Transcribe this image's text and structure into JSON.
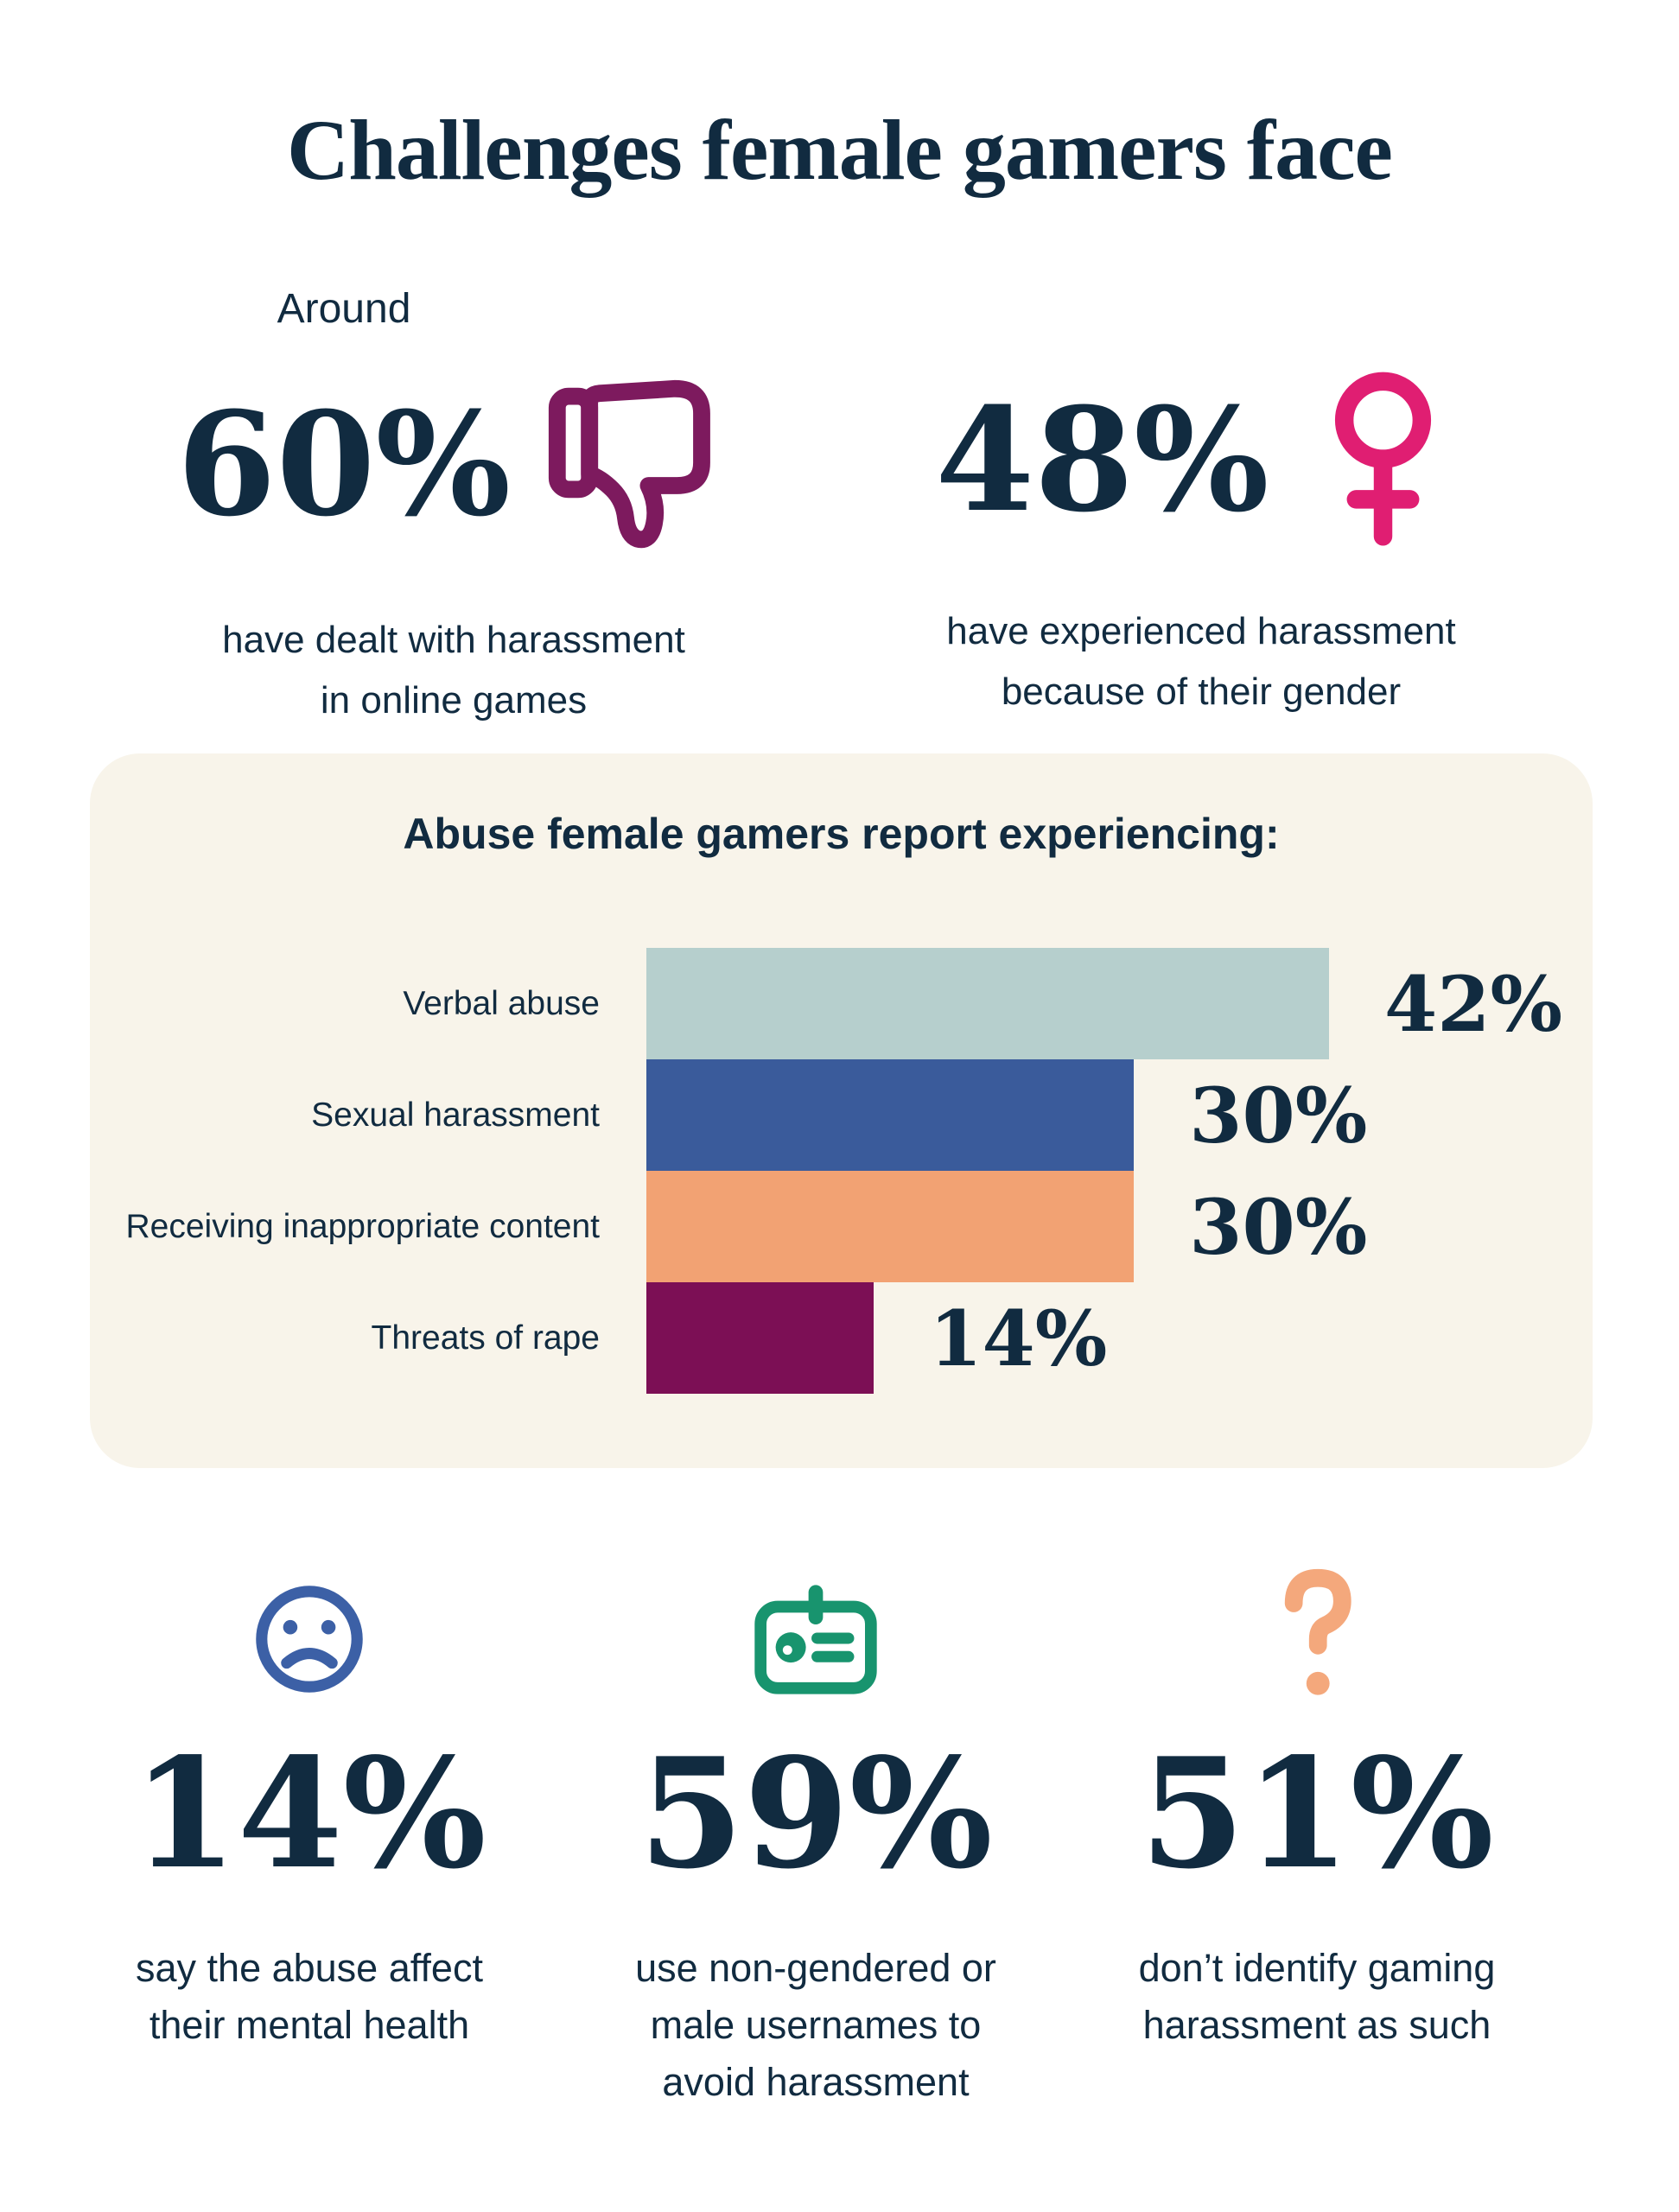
{
  "title": "Challenges female gamers face",
  "colors": {
    "navy": "#112B40",
    "cream": "#F8F4EA",
    "plum": "#7D1A5E",
    "pink": "#E01E72",
    "face_blue": "#3C60A6",
    "green": "#18946E",
    "q_orange": "#F4A87C"
  },
  "top_stats": [
    {
      "prefix": "Around",
      "value": "60%",
      "icon": "thumbs-down-icon",
      "caption": "have dealt with harassment\nin online games"
    },
    {
      "prefix": "",
      "value": "48%",
      "icon": "female-icon",
      "caption": "have experienced harassment\nbecause of their gender"
    }
  ],
  "chart_data": {
    "type": "bar",
    "orientation": "horizontal",
    "title": "Abuse female gamers report experiencing:",
    "categories": [
      "Verbal abuse",
      "Sexual harassment",
      "Receiving inappropriate content",
      "Threats of rape"
    ],
    "values": [
      42,
      30,
      30,
      14
    ],
    "value_labels": [
      "42%",
      "30%",
      "30%",
      "14%"
    ],
    "bar_colors": [
      "#B6CFCD",
      "#3A5B9B",
      "#F2A273",
      "#7C0F55"
    ],
    "unit": "%",
    "xlim": [
      0,
      42
    ],
    "grid": false,
    "legend": false
  },
  "bottom_stats": [
    {
      "value": "14%",
      "icon": "sad-face-icon",
      "caption": "say the abuse affect\ntheir mental health"
    },
    {
      "value": "59%",
      "icon": "id-card-icon",
      "caption": "use non-gendered or\nmale usernames to\navoid harassment"
    },
    {
      "value": "51%",
      "icon": "question-mark-icon",
      "caption": "don’t identify gaming\nharassment as such"
    }
  ]
}
